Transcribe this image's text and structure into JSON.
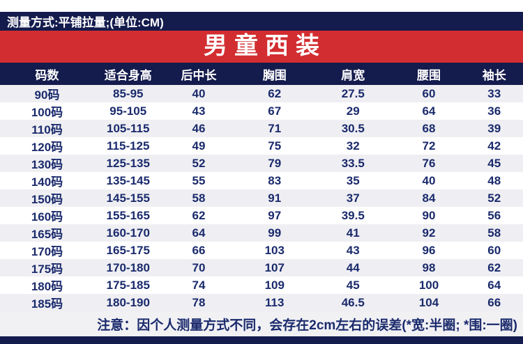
{
  "colors": {
    "navy": "#141b4d",
    "red": "#d22d30",
    "cell_text": "#1a2a6c",
    "row_alt": "#efeff3",
    "note_bg": "#f1f1f4"
  },
  "header": {
    "measurement_note": "测量方式:平铺拉量;(单位:CM)",
    "title": "男童西装"
  },
  "footer": {
    "note": "注意：因个人测量方式不同，会存在2cm左右的误差(*宽:半圈; *围:一圈)"
  },
  "chart_data": {
    "type": "table",
    "title": "男童西装",
    "unit": "CM",
    "columns": [
      "码数",
      "适合身高",
      "后中长",
      "胸围",
      "肩宽",
      "腰围",
      "袖长"
    ],
    "rows": [
      [
        "90码",
        "85-95",
        "40",
        "62",
        "27.5",
        "60",
        "33"
      ],
      [
        "100码",
        "95-105",
        "43",
        "67",
        "29",
        "64",
        "36"
      ],
      [
        "110码",
        "105-115",
        "46",
        "71",
        "30.5",
        "68",
        "39"
      ],
      [
        "120码",
        "115-125",
        "49",
        "75",
        "32",
        "72",
        "42"
      ],
      [
        "130码",
        "125-135",
        "52",
        "79",
        "33.5",
        "76",
        "45"
      ],
      [
        "140码",
        "135-145",
        "55",
        "83",
        "35",
        "40",
        "48"
      ],
      [
        "150码",
        "145-155",
        "58",
        "91",
        "37",
        "84",
        "52"
      ],
      [
        "160码",
        "155-165",
        "62",
        "97",
        "39.5",
        "90",
        "56"
      ],
      [
        "165码",
        "160-170",
        "64",
        "99",
        "41",
        "92",
        "58"
      ],
      [
        "170码",
        "165-175",
        "66",
        "103",
        "43",
        "96",
        "60"
      ],
      [
        "175码",
        "170-180",
        "70",
        "107",
        "44",
        "98",
        "62"
      ],
      [
        "180码",
        "175-185",
        "74",
        "109",
        "45",
        "100",
        "64"
      ],
      [
        "185码",
        "180-190",
        "78",
        "113",
        "46.5",
        "104",
        "66"
      ]
    ]
  }
}
